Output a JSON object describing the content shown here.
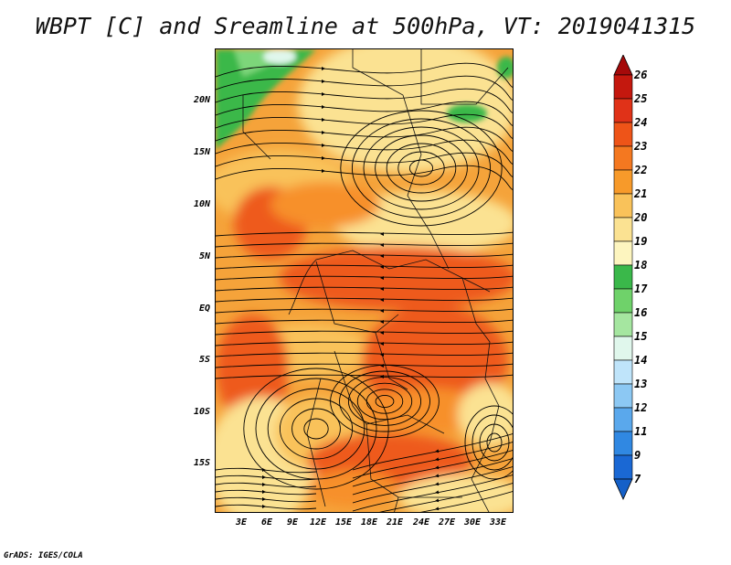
{
  "title": "WBPT [C] and Sreamline at 500hPa, VT: 2019041315",
  "footer": "GrADS: IGES/COLA",
  "lat_ticks": [
    "20N",
    "15N",
    "10N",
    "5N",
    "EQ",
    "5S",
    "10S",
    "15S"
  ],
  "lon_ticks": [
    "3E",
    "6E",
    "9E",
    "12E",
    "15E",
    "18E",
    "21E",
    "24E",
    "27E",
    "30E",
    "33E"
  ],
  "colorbar": {
    "levels": [
      "26",
      "25",
      "24",
      "23",
      "22",
      "21",
      "20",
      "19",
      "18",
      "17",
      "16",
      "15",
      "14",
      "13",
      "12",
      "11",
      "9",
      "7"
    ],
    "colors": [
      "#a50a0a",
      "#c4180e",
      "#e03218",
      "#ee5418",
      "#f47820",
      "#f79a2a",
      "#f9c25a",
      "#fbe292",
      "#fdf5bf",
      "#3ab84a",
      "#6fd26a",
      "#a5e6a0",
      "#e0f7ec",
      "#bfe4fa",
      "#8cc8f3",
      "#5aa8ec",
      "#3088e2",
      "#1a68d4",
      "#1560c8"
    ],
    "top_color": "#a50a0a",
    "bottom_color": "#1560c8"
  },
  "map_colors": {
    "base": "#f5a33a",
    "hot": "#ee5a1c",
    "warm": "#f7902c",
    "light": "#f9c25a",
    "pale": "#fbe292",
    "green": "#3ab84a",
    "lightgreen": "#7dd67a",
    "cyan": "#e0f7ec"
  }
}
